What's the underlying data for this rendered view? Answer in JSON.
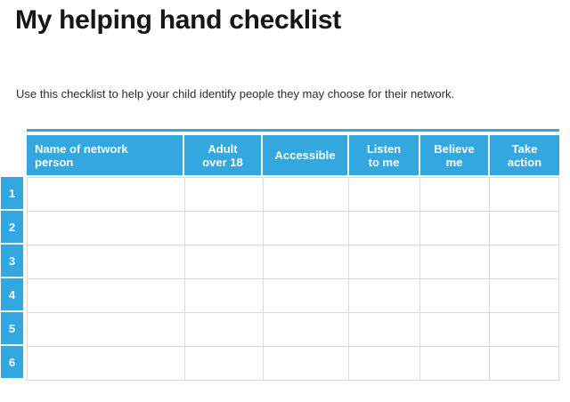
{
  "page": {
    "title": "My helping hand checklist",
    "subtitle": "Use this checklist to help your child identify people they may choose for their network."
  },
  "table": {
    "columns": [
      {
        "label": "Name of network\nperson"
      },
      {
        "label": "Adult\nover 18"
      },
      {
        "label": "Accessible"
      },
      {
        "label": "Listen\nto me"
      },
      {
        "label": "Believe\nme"
      },
      {
        "label": "Take\naction"
      }
    ],
    "row_numbers": [
      "1",
      "2",
      "3",
      "4",
      "5",
      "6"
    ]
  },
  "colors": {
    "header_blue": "#33a7df",
    "grid_gray": "#d9d9d9",
    "header_text": "#ffffff"
  }
}
